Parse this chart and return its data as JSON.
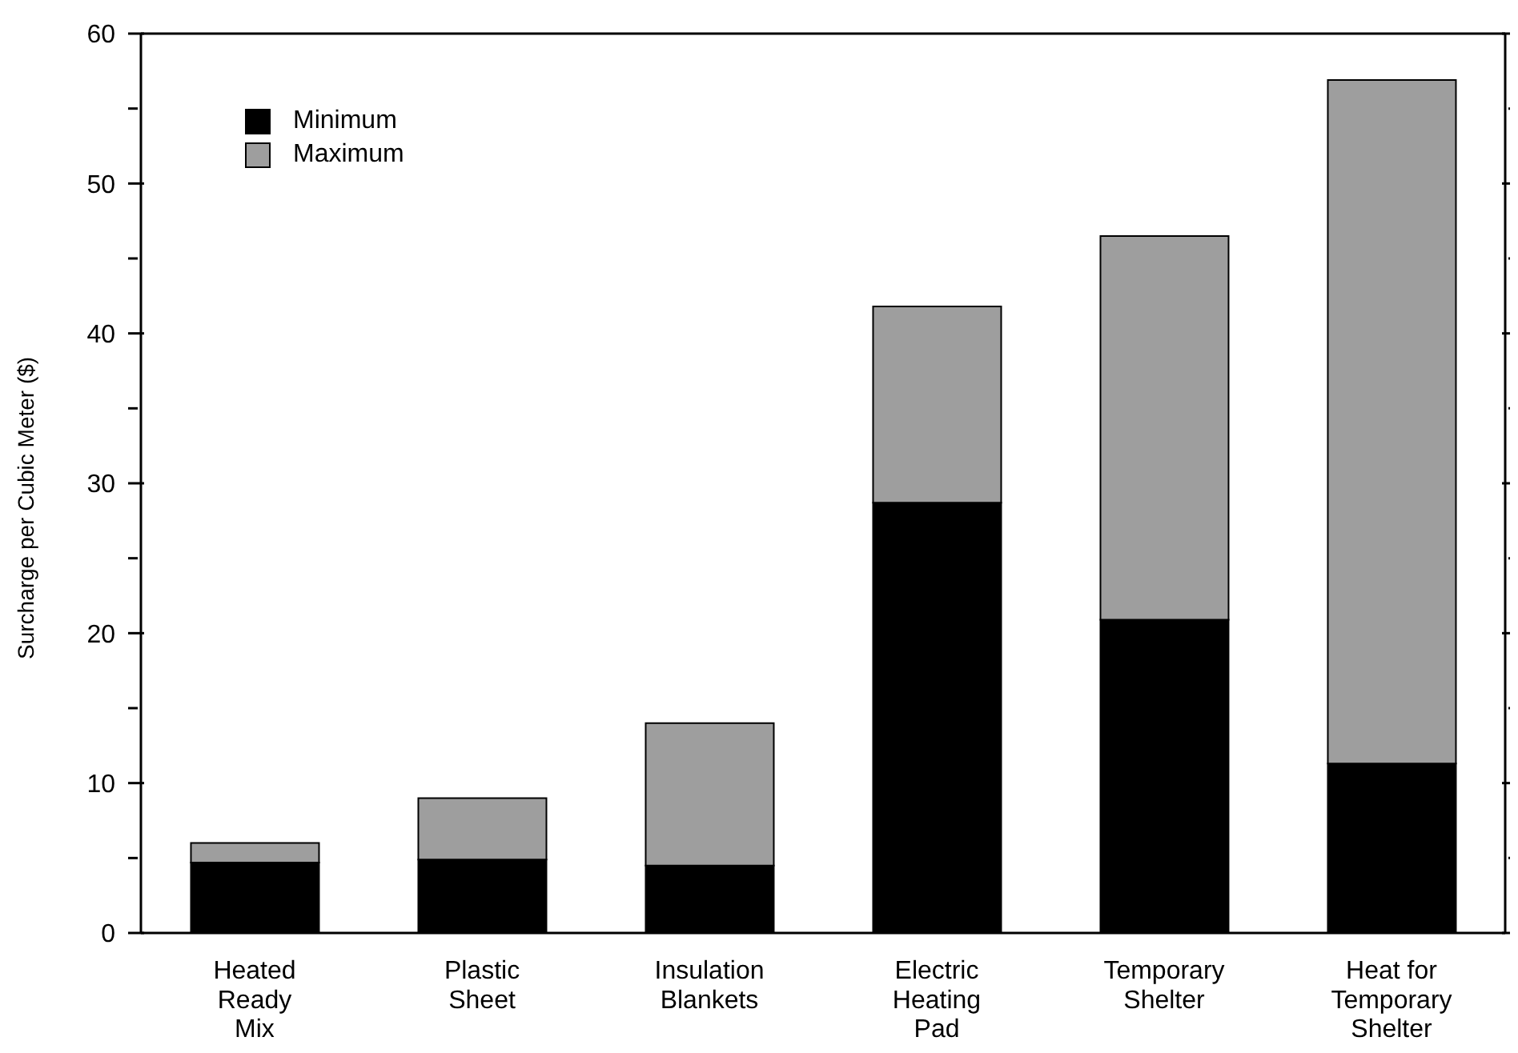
{
  "chart_data": {
    "type": "bar",
    "stacked": true,
    "ylabel": "Surcharge per Cubic Meter ($)",
    "categories": [
      "Heated\nReady\nMix",
      "Plastic\nSheet",
      "Insulation\nBlankets",
      "Electric\nHeating\nPad",
      "Temporary\nShelter",
      "Heat for\nTemporary\nShelter"
    ],
    "series": [
      {
        "name": "Minimum",
        "color": "#000000",
        "values": [
          4.7,
          4.9,
          4.5,
          28.7,
          20.9,
          11.3
        ]
      },
      {
        "name": "Maximum",
        "color": "#9e9e9e",
        "values": [
          1.3,
          4.1,
          9.5,
          13.1,
          25.6,
          45.6
        ]
      }
    ],
    "ylim": [
      0,
      60
    ],
    "yticks": [
      0,
      {
        "value": 5,
        "label": null
      },
      10,
      {
        "value": 15,
        "label": null
      },
      20,
      {
        "value": 25,
        "label": null
      },
      30,
      {
        "value": 35,
        "label": null
      },
      40,
      {
        "value": 45,
        "label": null
      },
      50,
      {
        "value": 55,
        "label": null
      },
      60
    ],
    "grid": false,
    "legend": "top left"
  }
}
